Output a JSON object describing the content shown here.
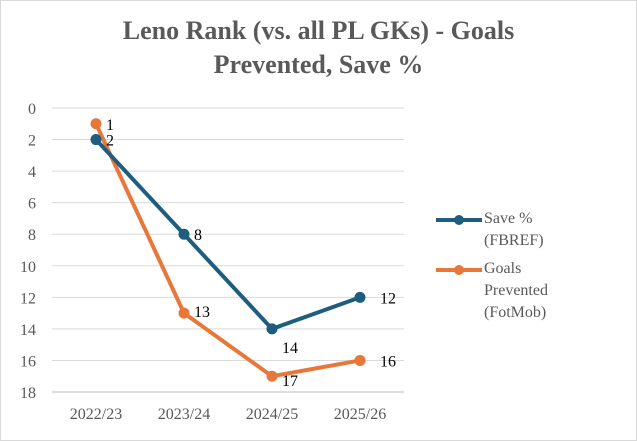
{
  "chart_data": {
    "type": "line",
    "title_line1": "Leno Rank (vs. all PL GKs) - Goals",
    "title_line2": "Prevented, Save %",
    "categories": [
      "2022/23",
      "2023/24",
      "2024/25",
      "2025/26"
    ],
    "y_axis": {
      "min": 0,
      "max": 18,
      "step": 2,
      "inverted": true,
      "tick_labels": [
        "0",
        "2",
        "4",
        "6",
        "8",
        "10",
        "12",
        "14",
        "16",
        "18"
      ]
    },
    "grid": true,
    "legend_position": "right",
    "series": [
      {
        "name_line1": "Save % (FBREF)",
        "name_line2": "",
        "color": "#1f5d7f",
        "values": [
          2,
          8,
          14,
          12
        ],
        "labels": [
          "2",
          "8",
          "14",
          "12"
        ]
      },
      {
        "name_line1": "Goals Prevented",
        "name_line2": "(FotMob)",
        "color": "#e8773a",
        "values": [
          1,
          13,
          17,
          16
        ],
        "labels": [
          "1",
          "13",
          "17",
          "16"
        ]
      }
    ]
  }
}
